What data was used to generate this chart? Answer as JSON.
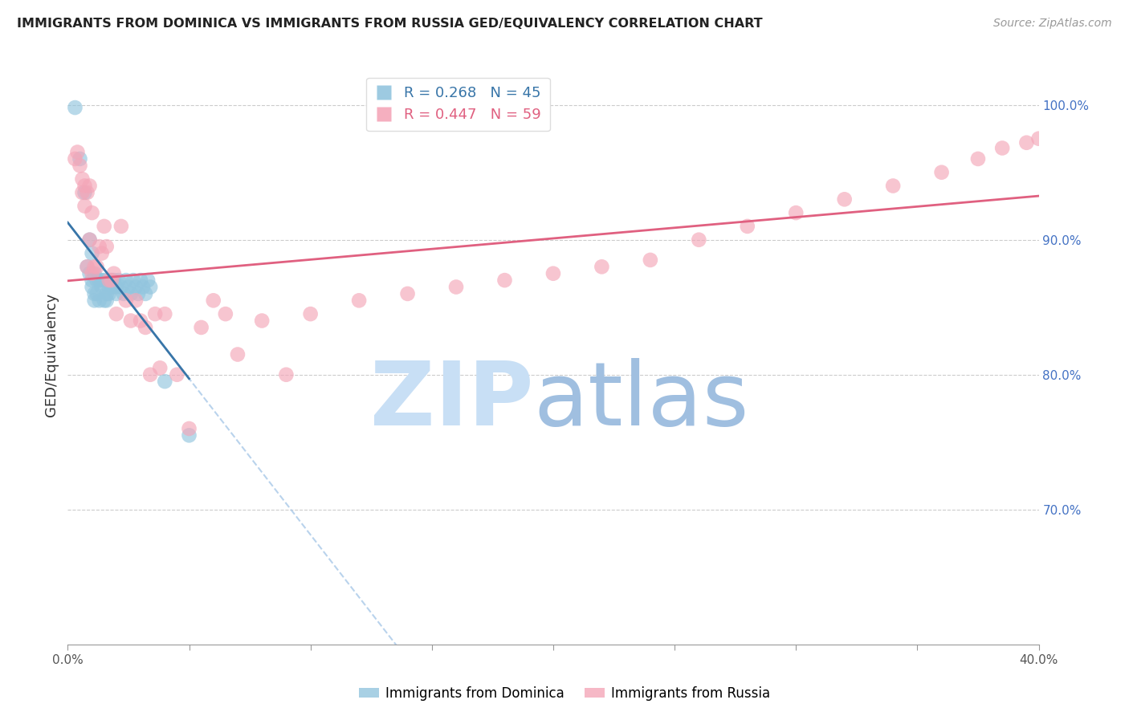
{
  "title": "IMMIGRANTS FROM DOMINICA VS IMMIGRANTS FROM RUSSIA GED/EQUIVALENCY CORRELATION CHART",
  "source": "Source: ZipAtlas.com",
  "ylabel": "GED/Equivalency",
  "ylabel_right_ticks": [
    70.0,
    80.0,
    90.0,
    100.0
  ],
  "x_min": 0.0,
  "x_max": 0.4,
  "y_min": 0.6,
  "y_max": 1.03,
  "dominica_R": 0.268,
  "dominica_N": 45,
  "russia_R": 0.447,
  "russia_N": 59,
  "dominica_color": "#92c5de",
  "russia_color": "#f4a6b8",
  "dominica_line_color": "#3875a8",
  "russia_line_color": "#e06080",
  "dominica_dash_color": "#a8c8e8",
  "legend_label_dominica": "Immigrants from Dominica",
  "legend_label_russia": "Immigrants from Russia",
  "watermark_zip_color": "#c8dff5",
  "watermark_atlas_color": "#a0bfe0",
  "background_color": "#ffffff",
  "grid_color": "#cccccc",
  "right_axis_color": "#4472c4",
  "dominica_x": [
    0.003,
    0.005,
    0.007,
    0.008,
    0.009,
    0.009,
    0.01,
    0.01,
    0.01,
    0.011,
    0.011,
    0.011,
    0.012,
    0.012,
    0.013,
    0.013,
    0.014,
    0.014,
    0.015,
    0.015,
    0.016,
    0.016,
    0.017,
    0.017,
    0.018,
    0.018,
    0.019,
    0.02,
    0.02,
    0.021,
    0.022,
    0.023,
    0.024,
    0.025,
    0.026,
    0.027,
    0.028,
    0.029,
    0.03,
    0.031,
    0.032,
    0.033,
    0.034,
    0.04,
    0.05
  ],
  "dominica_y": [
    0.998,
    0.96,
    0.935,
    0.88,
    0.9,
    0.875,
    0.89,
    0.87,
    0.865,
    0.875,
    0.86,
    0.855,
    0.87,
    0.86,
    0.87,
    0.855,
    0.87,
    0.865,
    0.87,
    0.855,
    0.86,
    0.855,
    0.865,
    0.86,
    0.87,
    0.865,
    0.87,
    0.865,
    0.86,
    0.87,
    0.865,
    0.86,
    0.87,
    0.865,
    0.86,
    0.87,
    0.865,
    0.86,
    0.87,
    0.865,
    0.86,
    0.87,
    0.865,
    0.795,
    0.755
  ],
  "russia_x": [
    0.003,
    0.004,
    0.005,
    0.006,
    0.006,
    0.007,
    0.007,
    0.008,
    0.008,
    0.009,
    0.009,
    0.01,
    0.01,
    0.011,
    0.012,
    0.013,
    0.014,
    0.015,
    0.016,
    0.017,
    0.018,
    0.019,
    0.02,
    0.022,
    0.024,
    0.026,
    0.028,
    0.03,
    0.032,
    0.034,
    0.036,
    0.038,
    0.04,
    0.045,
    0.05,
    0.055,
    0.06,
    0.065,
    0.07,
    0.08,
    0.09,
    0.1,
    0.12,
    0.14,
    0.16,
    0.18,
    0.2,
    0.22,
    0.24,
    0.26,
    0.28,
    0.3,
    0.32,
    0.34,
    0.36,
    0.375,
    0.385,
    0.395,
    0.4
  ],
  "russia_y": [
    0.96,
    0.965,
    0.955,
    0.945,
    0.935,
    0.925,
    0.94,
    0.88,
    0.935,
    0.9,
    0.94,
    0.875,
    0.92,
    0.88,
    0.88,
    0.895,
    0.89,
    0.91,
    0.895,
    0.87,
    0.87,
    0.875,
    0.845,
    0.91,
    0.855,
    0.84,
    0.855,
    0.84,
    0.835,
    0.8,
    0.845,
    0.805,
    0.845,
    0.8,
    0.76,
    0.835,
    0.855,
    0.845,
    0.815,
    0.84,
    0.8,
    0.845,
    0.855,
    0.86,
    0.865,
    0.87,
    0.875,
    0.88,
    0.885,
    0.9,
    0.91,
    0.92,
    0.93,
    0.94,
    0.95,
    0.96,
    0.968,
    0.972,
    0.975
  ]
}
